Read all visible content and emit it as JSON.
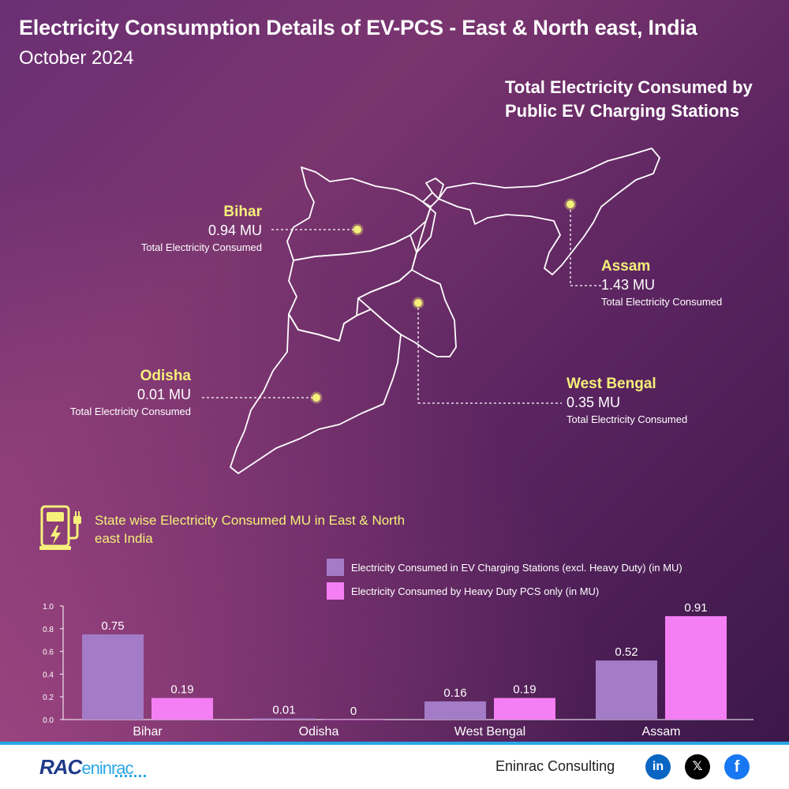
{
  "title": "Electricity Consumption Details of EV-PCS - East & North east, India",
  "subtitle": "October 2024",
  "map_heading": "Total Electricity Consumed by Public EV Charging Stations",
  "states": {
    "bihar": {
      "name": "Bihar",
      "value": "0.94 MU",
      "sub": "Total Electricity Consumed"
    },
    "assam": {
      "name": "Assam",
      "value": "1.43 MU",
      "sub": "Total Electricity Consumed"
    },
    "odisha": {
      "name": "Odisha",
      "value": "0.01 MU",
      "sub": "Total Electricity Consumed"
    },
    "west_bengal": {
      "name": "West Bengal",
      "value": "0.35 MU",
      "sub": "Total Electricity Consumed"
    }
  },
  "section_title": "State wise Electricity Consumed MU in East & North east India",
  "colors": {
    "highlight": "#f5f07a",
    "series1": "#a37bc6",
    "series2": "#f47ef3"
  },
  "chart_data": {
    "type": "bar",
    "categories": [
      "Bihar",
      "Odisha",
      "West Bengal",
      "Assam"
    ],
    "series": [
      {
        "name": "Electricity Consumed in EV Charging Stations (excl. Heavy Duty) (in MU)",
        "values": [
          0.75,
          0.01,
          0.16,
          0.52
        ],
        "labels": [
          "0.75",
          "0.01",
          "0.16",
          "0.52"
        ],
        "color": "#a37bc6"
      },
      {
        "name": "Electricity Consumed by Heavy Duty PCS only (in MU)",
        "values": [
          0.19,
          0,
          0.19,
          0.91
        ],
        "labels": [
          "0.19",
          "0",
          "0.19",
          "0.91"
        ],
        "color": "#f47ef3"
      }
    ],
    "ylim": [
      0,
      1.0
    ],
    "yticks": [
      "0.0",
      "0.2",
      "0.4",
      "0.6",
      "0.8",
      "1.0"
    ],
    "grid": false,
    "legend": "top-right"
  },
  "footer": {
    "logo_part1": "RAC",
    "logo_part2": "eninrac",
    "company": "Eninrac Consulting",
    "social_icons": [
      "linkedin-icon",
      "x-icon",
      "facebook-icon"
    ],
    "linkedin_glyph": "in",
    "x_glyph": "𝕏",
    "facebook_glyph": "f"
  }
}
